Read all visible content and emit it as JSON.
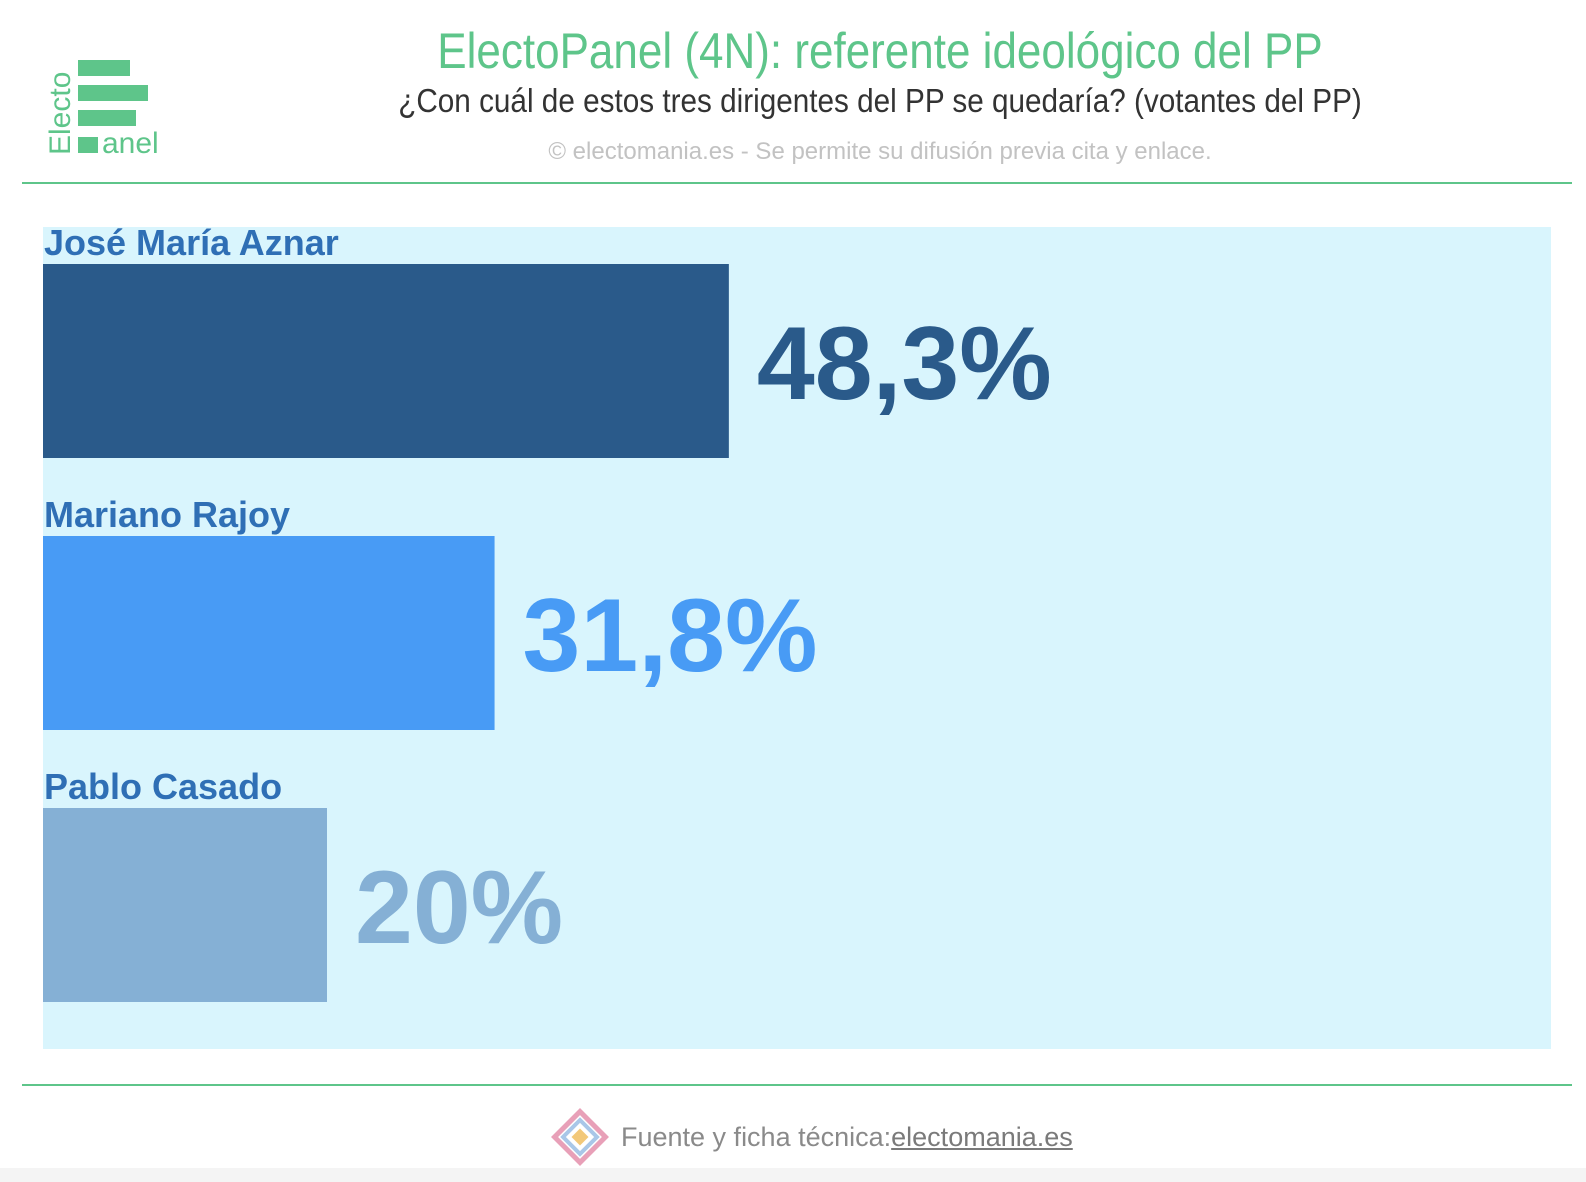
{
  "header": {
    "title": "ElectoPanel (4N): referente ideológico del PP",
    "subtitle": "¿Con cuál de estos tres dirigentes del PP se quedaría? (votantes del PP)",
    "copyright": "© electomania.es - Se permite su difusión previa cita y enlace."
  },
  "logo": {
    "word_top": "Electo",
    "word_bottom": "anel",
    "color": "#5ec58a"
  },
  "footer": {
    "label": "Fuente y ficha técnica: ",
    "link_text": "electomania.es"
  },
  "chart_data": {
    "type": "bar",
    "orientation": "horizontal",
    "categories": [
      "José María Aznar",
      "Mariano Rajoy",
      "Pablo Casado"
    ],
    "values": [
      48.3,
      31.8,
      20
    ],
    "value_labels": [
      "48,3%",
      "31,8%",
      "20%"
    ],
    "colors": [
      "#2a5a8a",
      "#489bf5",
      "#85b0d5"
    ],
    "label_color": "#2f6fb5",
    "background": "#d9f5fd",
    "xlim": [
      0,
      100
    ],
    "grid": false,
    "legend": "none"
  }
}
